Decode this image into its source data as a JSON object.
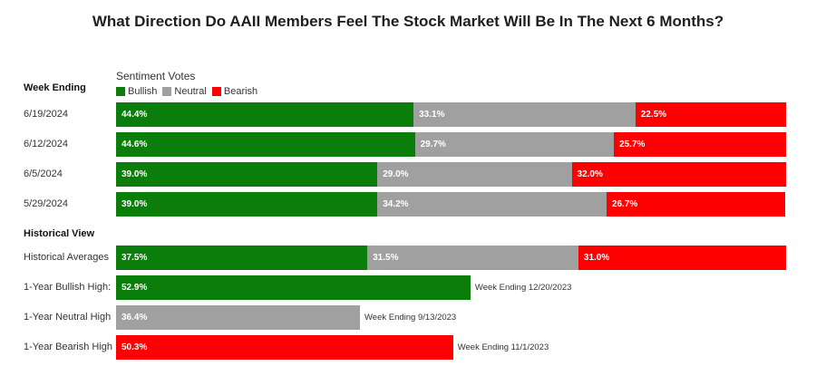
{
  "chart_data": {
    "type": "bar",
    "stacked": true,
    "orientation": "horizontal",
    "title": "What Direction Do AAII Members Feel The Stock Market Will Be In The Next 6 Months?",
    "legend_title": "Sentiment Votes",
    "legend_placement": "top-left",
    "grid": false,
    "xlim": [
      0,
      100
    ],
    "series_names": [
      "Bullish",
      "Neutral",
      "Bearish"
    ],
    "colors": {
      "Bullish": "#0a7d0a",
      "Neutral": "#a0a0a0",
      "Bearish": "#ff0000"
    },
    "weekly_header": "Week Ending",
    "weekly": [
      {
        "label": "6/19/2024",
        "values": [
          44.4,
          33.1,
          22.5
        ],
        "texts": [
          "44.4%",
          "33.1%",
          "22.5%"
        ]
      },
      {
        "label": "6/12/2024",
        "values": [
          44.6,
          29.7,
          25.7
        ],
        "texts": [
          "44.6%",
          "29.7%",
          "25.7%"
        ]
      },
      {
        "label": "6/5/2024",
        "values": [
          39.0,
          29.0,
          32.0
        ],
        "texts": [
          "39.0%",
          "29.0%",
          "32.0%"
        ]
      },
      {
        "label": "5/29/2024",
        "values": [
          39.0,
          34.2,
          26.7
        ],
        "texts": [
          "39.0%",
          "34.2%",
          "26.7%"
        ]
      }
    ],
    "historical_header": "Historical View",
    "historical_average": {
      "label": "Historical Averages",
      "values": [
        37.5,
        31.5,
        31.0
      ],
      "texts": [
        "37.5%",
        "31.5%",
        "31.0%"
      ]
    },
    "highs": [
      {
        "label": "1-Year Bullish High:",
        "series": "Bullish",
        "value": 52.9,
        "text": "52.9%",
        "note": "Week Ending 12/20/2023"
      },
      {
        "label": "1-Year Neutral High",
        "series": "Neutral",
        "value": 36.4,
        "text": "36.4%",
        "note": "Week Ending 9/13/2023"
      },
      {
        "label": "1-Year Bearish High",
        "series": "Bearish",
        "value": 50.3,
        "text": "50.3%",
        "note": "Week Ending 11/1/2023"
      }
    ]
  }
}
